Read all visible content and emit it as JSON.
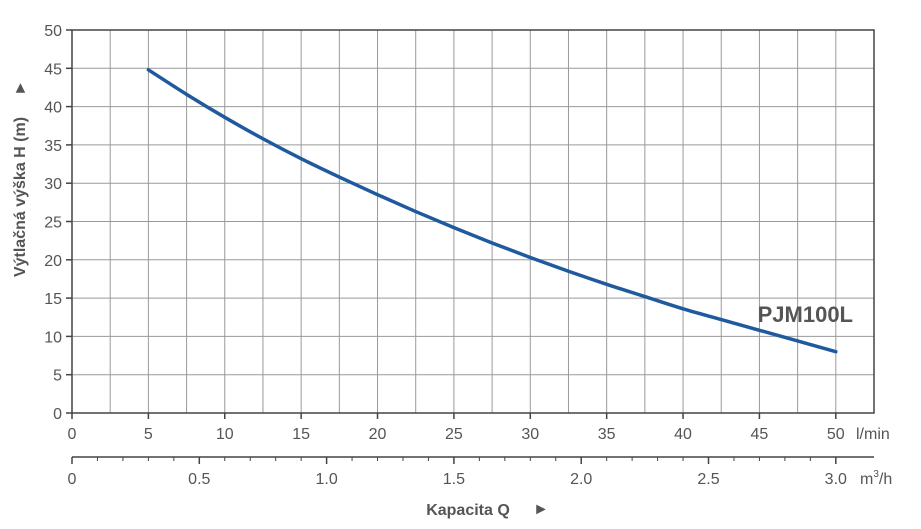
{
  "chart_data": {
    "type": "line",
    "ylabel": "Výtlačná výška H (m)",
    "ylabel_arrow": "►",
    "xlabel": "Kapacita Q",
    "xlabel_arrow": "►",
    "x_unit": "l/min",
    "x2_unit_base": "m",
    "x2_unit_sup": "3",
    "x2_unit_tail": "/h",
    "xlim": [
      0,
      52.5
    ],
    "ylim": [
      0,
      50
    ],
    "grid": true,
    "x_ticks": [
      0,
      5,
      10,
      15,
      20,
      25,
      30,
      35,
      40,
      45,
      50
    ],
    "x_tick_labels": [
      "0",
      "5",
      "10",
      "15",
      "20",
      "25",
      "30",
      "35",
      "40",
      "45",
      "50"
    ],
    "y_ticks": [
      0,
      5,
      10,
      15,
      20,
      25,
      30,
      35,
      40,
      45,
      50
    ],
    "y_tick_labels": [
      "0",
      "5",
      "10",
      "15",
      "20",
      "25",
      "30",
      "35",
      "40",
      "45",
      "50"
    ],
    "x2_ticks": [
      0,
      0.5,
      1.0,
      1.5,
      2.0,
      2.5,
      3.0
    ],
    "x2_tick_labels": [
      "0",
      "0.5",
      "1.0",
      "1.5",
      "2.0",
      "2.5",
      "3.0"
    ],
    "series": [
      {
        "name": "PJM100L",
        "color": "#1f5a9e",
        "x": [
          5,
          7.5,
          10,
          12.5,
          15,
          17.5,
          20,
          22.5,
          25,
          27.5,
          30,
          32.5,
          35,
          37.5,
          40,
          42.5,
          45,
          47.5,
          50
        ],
        "y": [
          44.8,
          41.6,
          38.6,
          35.8,
          33.2,
          30.8,
          28.5,
          26.3,
          24.2,
          22.2,
          20.3,
          18.5,
          16.8,
          15.2,
          13.6,
          12.2,
          10.8,
          9.4,
          8.0
        ]
      }
    ]
  }
}
